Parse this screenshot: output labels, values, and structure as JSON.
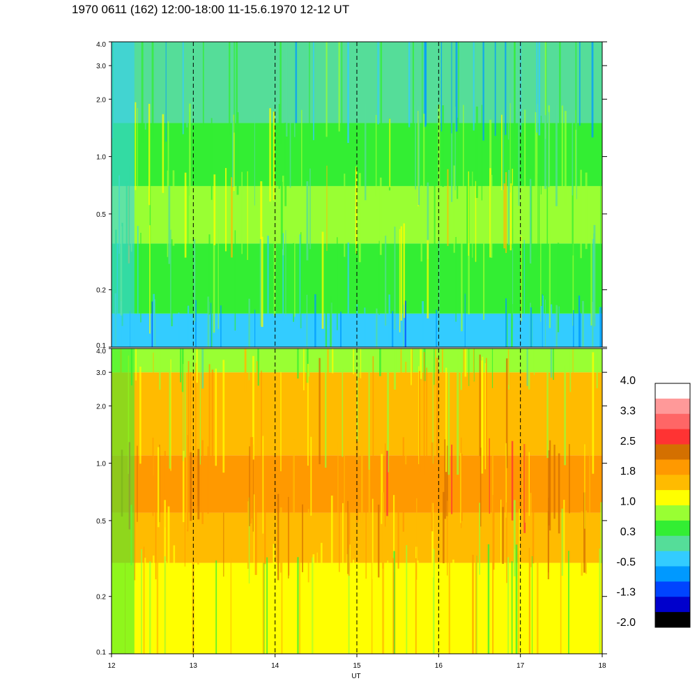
{
  "title": "1970 0611 (162) 12:00-18:00 11-15.6.1970  12-12 UT",
  "chart_data": [
    {
      "type": "heatmap",
      "panel": "upper",
      "x_range": [
        12,
        18
      ],
      "y_scale": "log",
      "y_range": [
        0.1,
        4.0
      ],
      "y_ticks": [
        "0.1",
        "0.2",
        "0.5",
        "1.0",
        "2.0",
        "3.0",
        "4.0"
      ],
      "hour_markers": [
        13,
        14,
        15,
        16,
        17
      ],
      "bands": [
        {
          "y_low": 0.1,
          "y_high": 0.15,
          "level": -0.3
        },
        {
          "y_low": 0.15,
          "y_high": 0.35,
          "level": 0.4
        },
        {
          "y_low": 0.35,
          "y_high": 0.7,
          "level": 0.8
        },
        {
          "y_low": 0.7,
          "y_high": 1.5,
          "level": 0.6
        },
        {
          "y_low": 1.5,
          "y_high": 4.0,
          "level": -0.1
        }
      ]
    },
    {
      "type": "heatmap",
      "panel": "lower",
      "x_range": [
        12,
        18
      ],
      "y_scale": "log",
      "y_range": [
        0.1,
        4.0
      ],
      "y_ticks": [
        "0.1",
        "0.2",
        "0.5",
        "1.0",
        "2.0",
        "3.0",
        "4.0"
      ],
      "x_ticks": [
        "12",
        "13",
        "14",
        "15",
        "16",
        "17",
        "18"
      ],
      "xlabel": "UT",
      "hour_markers": [
        13,
        14,
        15,
        16,
        17
      ],
      "bands": [
        {
          "y_low": 0.1,
          "y_high": 0.3,
          "level": 1.2
        },
        {
          "y_low": 0.3,
          "y_high": 0.55,
          "level": 1.6
        },
        {
          "y_low": 0.55,
          "y_high": 1.1,
          "level": 2.0
        },
        {
          "y_low": 1.1,
          "y_high": 3.0,
          "level": 1.5
        },
        {
          "y_low": 3.0,
          "y_high": 4.0,
          "level": 0.8
        }
      ]
    }
  ],
  "colorbar": {
    "labels": [
      "4.0",
      "3.3",
      "2.5",
      "1.8",
      "1.0",
      "0.3",
      "-0.5",
      "-1.3",
      "-2.0"
    ],
    "colors": [
      "#ffffff",
      "#ff9999",
      "#ff6666",
      "#ff3333",
      "#d47000",
      "#ff9900",
      "#ffbb00",
      "#ffff00",
      "#99ff33",
      "#33ee33",
      "#55dd99",
      "#33ccff",
      "#0099ff",
      "#0044ff",
      "#0000cc",
      "#000000"
    ]
  }
}
